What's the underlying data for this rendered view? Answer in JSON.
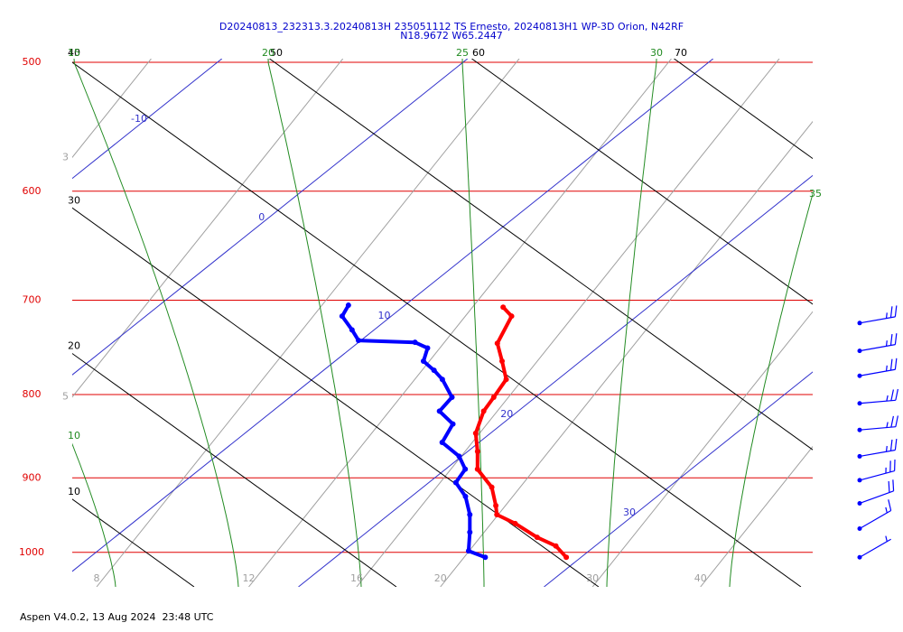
{
  "chart_data": {
    "type": "skewt",
    "title": "D20240813_232313.3.20240813H 235051112 TS Ernesto, 20240813H1 WP-3D Orion, N42RF",
    "subtitle": "N18.9672 W65.2447",
    "yscale": "log",
    "ylim": [
      500,
      1050
    ],
    "yticks": [
      500,
      600,
      700,
      800,
      900,
      1000
    ],
    "ytick_color": "#e00000",
    "isotherms": {
      "values": [
        -10,
        0,
        10,
        20,
        30
      ],
      "color": "#3333cc"
    },
    "dry_adiabats": {
      "values": [
        10,
        20,
        30,
        40,
        50,
        60,
        70
      ],
      "color": "#000000"
    },
    "moist_adiabats": {
      "values": [
        10,
        15,
        20,
        25,
        30,
        35
      ],
      "color": "#228b22"
    },
    "mixing_ratios": {
      "values": [
        3,
        5,
        8,
        12,
        16,
        20,
        30,
        40
      ],
      "color": "#a0a0a0"
    },
    "series": [
      {
        "color": "#ff0000",
        "pressure": [
          707,
          716,
          744,
          763,
          783,
          803,
          819,
          845,
          867,
          889,
          912,
          936,
          948,
          960,
          979,
          991,
          1007
        ],
        "values": [
          14.1,
          14.9,
          15.7,
          16.8,
          17.9,
          18.3,
          18.6,
          19.4,
          20.4,
          21.3,
          22.8,
          23.9,
          24.4,
          25.6,
          27.2,
          28.4,
          29.4
        ]
      },
      {
        "color": "#0000ff",
        "pressure": [
          705,
          716,
          730,
          741,
          743,
          749,
          763,
          773,
          783,
          803,
          819,
          834,
          856,
          873,
          889,
          906,
          924,
          948,
          972,
          998,
          1007
        ],
        "values": [
          7.7,
          8.0,
          9.1,
          9.9,
          12.3,
          13.1,
          13.6,
          14.5,
          15.3,
          16.6,
          16.8,
          18.0,
          18.5,
          19.9,
          20.8,
          21.1,
          22.2,
          23.3,
          24.2,
          25.1,
          26.1
        ]
      }
    ],
    "winds": {
      "color": "#0000ff",
      "pressure": [
        723,
        752,
        779,
        810,
        841,
        873,
        903,
        933,
        967,
        1007
      ],
      "speed": [
        25,
        25,
        25,
        25,
        25,
        25,
        25,
        20,
        15,
        5
      ],
      "direction": [
        80,
        80,
        80,
        85,
        85,
        80,
        75,
        70,
        60,
        60
      ]
    }
  },
  "footer": "Aspen V4.0.2, 13 Aug 2024  23:48 UTC"
}
